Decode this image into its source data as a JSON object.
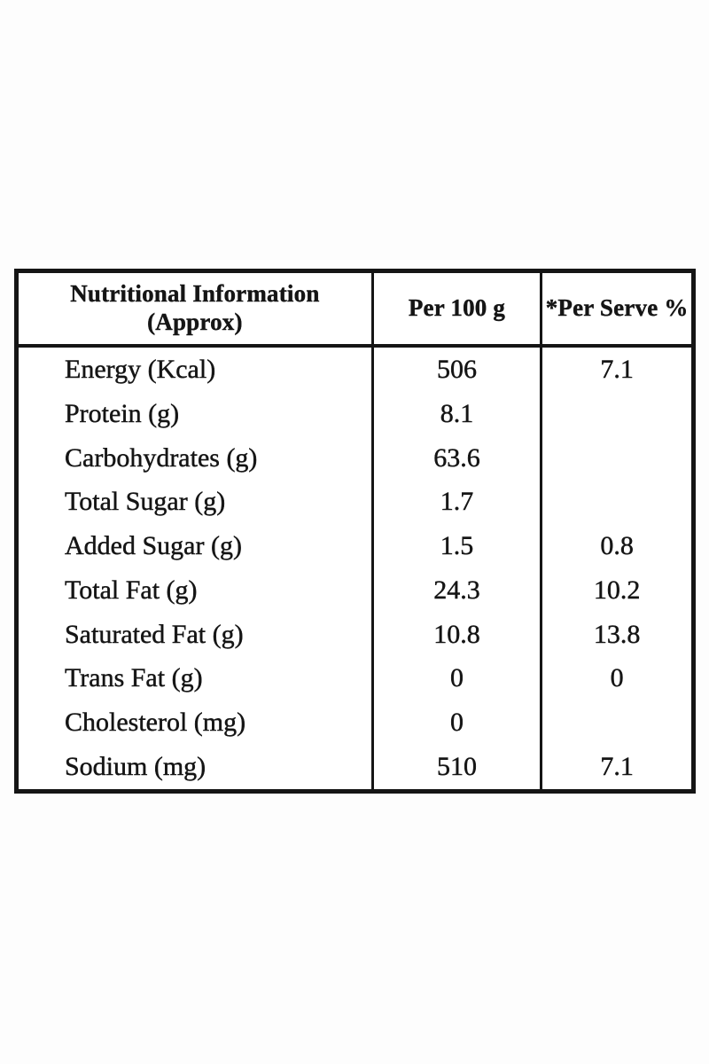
{
  "table": {
    "title_line1": "Nutritional Information",
    "title_line2": "(Approx)",
    "header": {
      "col2": "Per 100 g",
      "col3": "*Per Serve %"
    },
    "rows": [
      {
        "label": "Energy (Kcal)",
        "per_100g": "506",
        "per_serve": "7.1"
      },
      {
        "label": "Protein (g)",
        "per_100g": "8.1",
        "per_serve": ""
      },
      {
        "label": "Carbohydrates (g)",
        "per_100g": "63.6",
        "per_serve": ""
      },
      {
        "label": "Total Sugar (g)",
        "per_100g": "1.7",
        "per_serve": ""
      },
      {
        "label": "Added Sugar (g)",
        "per_100g": "1.5",
        "per_serve": "0.8"
      },
      {
        "label": "Total Fat (g)",
        "per_100g": "24.3",
        "per_serve": "10.2"
      },
      {
        "label": "Saturated Fat (g)",
        "per_100g": "10.8",
        "per_serve": "13.8"
      },
      {
        "label": "Trans Fat (g)",
        "per_100g": "0",
        "per_serve": "0"
      },
      {
        "label": "Cholesterol (mg)",
        "per_100g": "0",
        "per_serve": ""
      },
      {
        "label": "Sodium (mg)",
        "per_100g": "510",
        "per_serve": "7.1"
      }
    ],
    "colors": {
      "border": "#151515",
      "text": "#151515",
      "background": "#ffffff"
    }
  }
}
